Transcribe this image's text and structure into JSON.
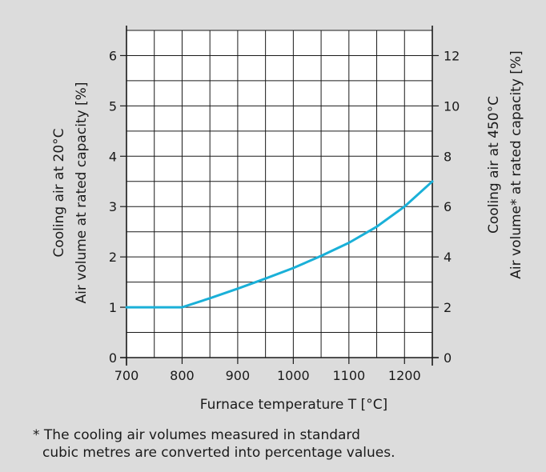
{
  "colors": {
    "background": "#dcdcdc",
    "plot_background": "#ffffff",
    "grid": "#1a1a1a",
    "series": "#1ab0d8",
    "text": "#1a1a1a"
  },
  "chart_data": {
    "type": "line",
    "xlabel": "Furnace temperature T [°C]",
    "ylabel_left": [
      "Cooling air at 20°C",
      "Air volume at rated capacity [%]"
    ],
    "ylabel_right": [
      "Cooling air at 450°C",
      "Air volume* at rated capacity [%]"
    ],
    "xlim": [
      700,
      1250
    ],
    "ylim_left": [
      0,
      6.5
    ],
    "ylim_right": [
      0,
      13
    ],
    "x_ticks": [
      700,
      800,
      900,
      1000,
      1100,
      1200
    ],
    "y_ticks_left": [
      0,
      1,
      2,
      3,
      4,
      5,
      6
    ],
    "y_ticks_right": [
      0,
      2,
      4,
      6,
      8,
      10,
      12
    ],
    "x_grid_step": 50,
    "y_grid_step": 0.5,
    "grid": true,
    "series": [
      {
        "x": [
          700,
          800,
          850,
          900,
          950,
          1000,
          1050,
          1100,
          1150,
          1200,
          1250
        ],
        "y": [
          1.0,
          1.0,
          1.18,
          1.37,
          1.57,
          1.78,
          2.02,
          2.28,
          2.6,
          3.0,
          3.5
        ]
      }
    ]
  },
  "footnote": {
    "line1": "* The cooling air volumes measured in standard",
    "line2": "cubic metres are converted into percentage values."
  }
}
